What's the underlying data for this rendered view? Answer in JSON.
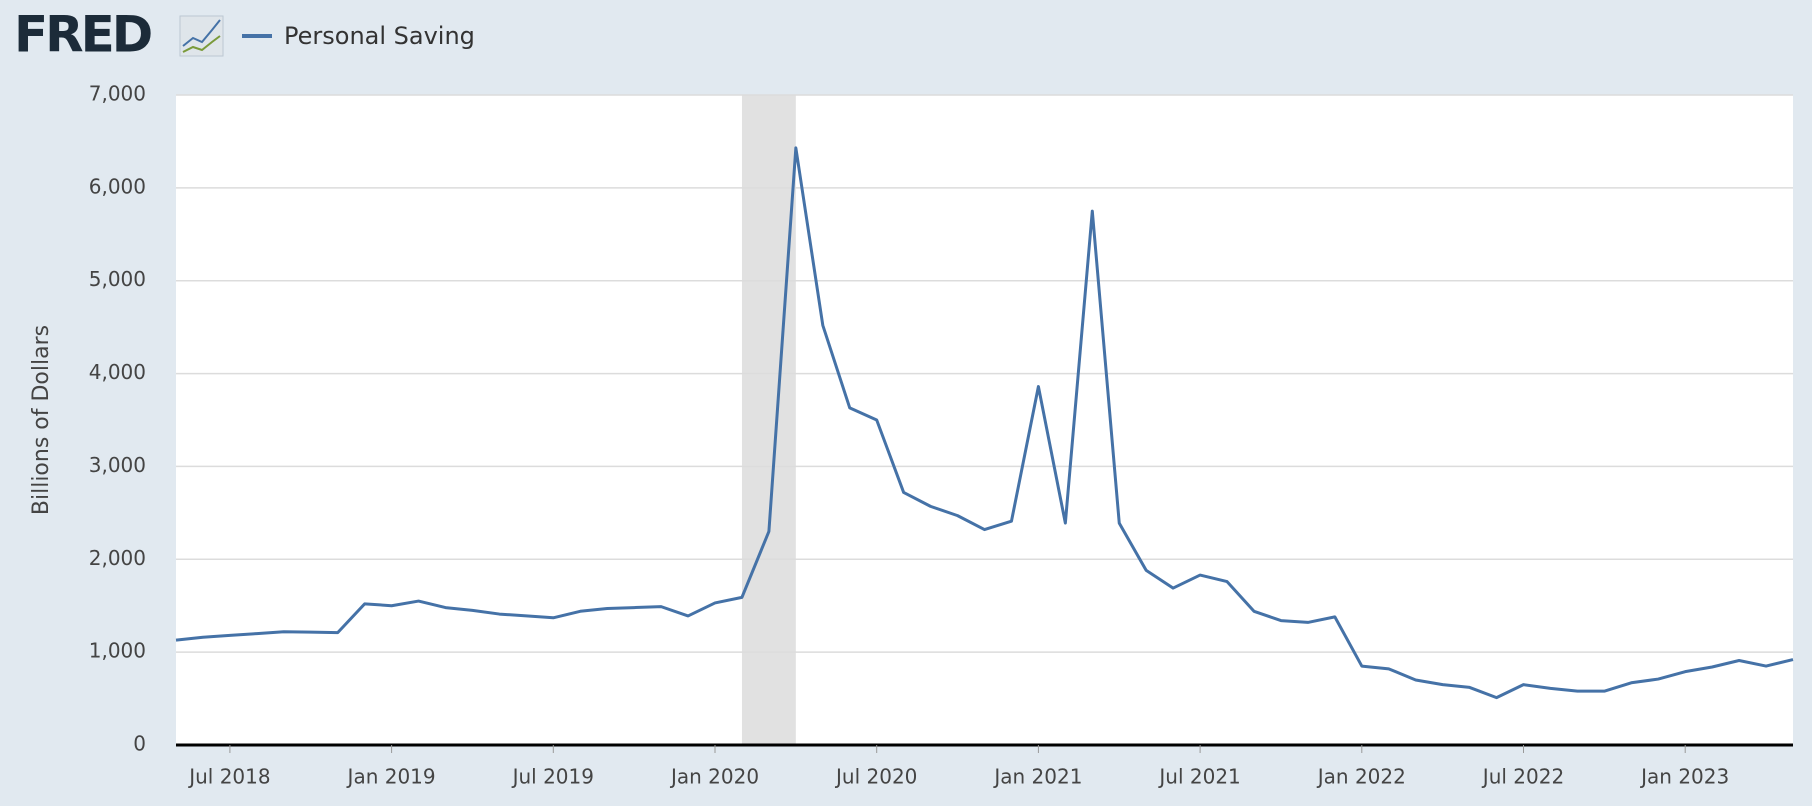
{
  "logo": "FRED",
  "chart_data": {
    "type": "line",
    "y_label": "Billions of Dollars",
    "x": [
      "2018-05",
      "2018-06",
      "2018-07",
      "2018-08",
      "2018-09",
      "2018-10",
      "2018-11",
      "2018-12",
      "2019-01",
      "2019-02",
      "2019-03",
      "2019-04",
      "2019-05",
      "2019-06",
      "2019-07",
      "2019-08",
      "2019-09",
      "2019-10",
      "2019-11",
      "2019-12",
      "2020-01",
      "2020-02",
      "2020-03",
      "2020-04",
      "2020-05",
      "2020-06",
      "2020-07",
      "2020-08",
      "2020-09",
      "2020-10",
      "2020-11",
      "2020-12",
      "2021-01",
      "2021-02",
      "2021-03",
      "2021-04",
      "2021-05",
      "2021-06",
      "2021-07",
      "2021-08",
      "2021-09",
      "2021-10",
      "2021-11",
      "2021-12",
      "2022-01",
      "2022-02",
      "2022-03",
      "2022-04",
      "2022-05",
      "2022-06",
      "2022-07",
      "2022-08",
      "2022-09",
      "2022-10",
      "2022-11",
      "2022-12",
      "2023-01",
      "2023-02",
      "2023-03",
      "2023-04",
      "2023-05"
    ],
    "series": [
      {
        "name": "Personal Saving",
        "color": "#4572a7",
        "values": [
          1130,
          1160,
          1180,
          1200,
          1220,
          1215,
          1210,
          1520,
          1500,
          1550,
          1480,
          1450,
          1410,
          1390,
          1370,
          1440,
          1470,
          1480,
          1490,
          1390,
          1530,
          1590,
          2300,
          6430,
          4520,
          3630,
          3500,
          2720,
          2570,
          2470,
          2320,
          2410,
          3860,
          2390,
          5750,
          2390,
          1880,
          1690,
          1830,
          1760,
          1440,
          1340,
          1320,
          1380,
          850,
          820,
          700,
          650,
          620,
          510,
          650,
          610,
          580,
          580,
          670,
          710,
          790,
          840,
          910,
          850,
          920
        ]
      }
    ],
    "recession": [
      "2020-02",
      "2020-04"
    ],
    "xlim": [
      "2018-05",
      "2023-05"
    ],
    "xticks": [
      {
        "value": "2018-07",
        "label": "Jul 2018"
      },
      {
        "value": "2019-01",
        "label": "Jan 2019"
      },
      {
        "value": "2019-07",
        "label": "Jul 2019"
      },
      {
        "value": "2020-01",
        "label": "Jan 2020"
      },
      {
        "value": "2020-07",
        "label": "Jul 2020"
      },
      {
        "value": "2021-01",
        "label": "Jan 2021"
      },
      {
        "value": "2021-07",
        "label": "Jul 2021"
      },
      {
        "value": "2022-01",
        "label": "Jan 2022"
      },
      {
        "value": "2022-07",
        "label": "Jul 2022"
      },
      {
        "value": "2023-01",
        "label": "Jan 2023"
      }
    ],
    "ylim": [
      0,
      7000
    ],
    "yticks": [
      0,
      {
        "value": 1000,
        "label": "1,000"
      },
      {
        "value": 2000,
        "label": "2,000"
      },
      {
        "value": 3000,
        "label": "3,000"
      },
      {
        "value": 4000,
        "label": "4,000"
      },
      {
        "value": 5000,
        "label": "5,000"
      },
      {
        "value": 6000,
        "label": "6,000"
      },
      {
        "value": 7000,
        "label": "7,000"
      }
    ],
    "grid": true
  }
}
